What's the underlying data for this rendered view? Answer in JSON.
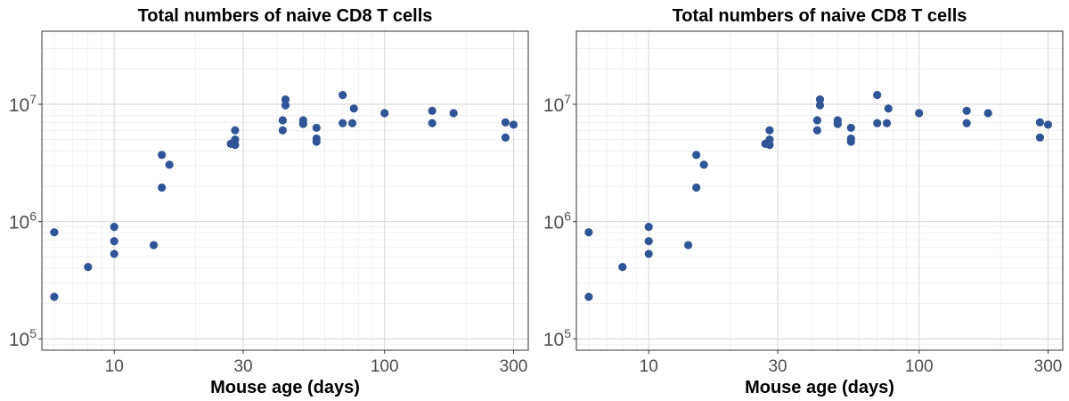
{
  "chart_data": [
    {
      "type": "scatter",
      "title": "Total numbers of naive CD8 T cells",
      "xlabel": "Mouse age (days)",
      "ylabel": "",
      "xscale": "log",
      "yscale": "log",
      "xlim": [
        5.4,
        340
      ],
      "ylim": [
        80000,
        42000000
      ],
      "xticks": [
        {
          "value": 10,
          "label": "10"
        },
        {
          "value": 30,
          "label": "30"
        },
        {
          "value": 100,
          "label": "100"
        },
        {
          "value": 300,
          "label": "300"
        }
      ],
      "yticks": [
        {
          "value": 100000,
          "base": "10",
          "exp": "5"
        },
        {
          "value": 1000000,
          "base": "10",
          "exp": "6"
        },
        {
          "value": 10000000,
          "base": "10",
          "exp": "7"
        }
      ],
      "point_color": "#2f5597",
      "grid": true,
      "points": [
        {
          "x": 6,
          "y": 810000
        },
        {
          "x": 6,
          "y": 228000
        },
        {
          "x": 8,
          "y": 410000
        },
        {
          "x": 10,
          "y": 900000
        },
        {
          "x": 10,
          "y": 680000
        },
        {
          "x": 10,
          "y": 530000
        },
        {
          "x": 14,
          "y": 630000
        },
        {
          "x": 15,
          "y": 3700000
        },
        {
          "x": 15,
          "y": 1950000
        },
        {
          "x": 16,
          "y": 3050000
        },
        {
          "x": 27,
          "y": 4600000
        },
        {
          "x": 28,
          "y": 6000000
        },
        {
          "x": 28,
          "y": 5000000
        },
        {
          "x": 28,
          "y": 4500000
        },
        {
          "x": 42,
          "y": 7300000
        },
        {
          "x": 42,
          "y": 6000000
        },
        {
          "x": 43,
          "y": 11000000
        },
        {
          "x": 43,
          "y": 9800000
        },
        {
          "x": 50,
          "y": 7300000
        },
        {
          "x": 50,
          "y": 6800000
        },
        {
          "x": 56,
          "y": 6300000
        },
        {
          "x": 56,
          "y": 5100000
        },
        {
          "x": 56,
          "y": 4800000
        },
        {
          "x": 70,
          "y": 12000000
        },
        {
          "x": 70,
          "y": 6900000
        },
        {
          "x": 76,
          "y": 6900000
        },
        {
          "x": 77,
          "y": 9200000
        },
        {
          "x": 100,
          "y": 8400000
        },
        {
          "x": 150,
          "y": 8800000
        },
        {
          "x": 150,
          "y": 6900000
        },
        {
          "x": 180,
          "y": 8400000
        },
        {
          "x": 280,
          "y": 7000000
        },
        {
          "x": 280,
          "y": 5200000
        },
        {
          "x": 300,
          "y": 6700000
        }
      ]
    },
    {
      "type": "scatter",
      "title": "Total numbers of naive CD8 T cells",
      "xlabel": "Mouse age (days)",
      "ylabel": "",
      "xscale": "log",
      "yscale": "log",
      "xlim": [
        5.4,
        340
      ],
      "ylim": [
        80000,
        42000000
      ],
      "xticks": [
        {
          "value": 10,
          "label": "10"
        },
        {
          "value": 30,
          "label": "30"
        },
        {
          "value": 100,
          "label": "100"
        },
        {
          "value": 300,
          "label": "300"
        }
      ],
      "yticks": [
        {
          "value": 100000,
          "base": "10",
          "exp": "5"
        },
        {
          "value": 1000000,
          "base": "10",
          "exp": "6"
        },
        {
          "value": 10000000,
          "base": "10",
          "exp": "7"
        }
      ],
      "point_color": "#2f5597",
      "grid": true,
      "points": [
        {
          "x": 6,
          "y": 810000
        },
        {
          "x": 6,
          "y": 228000
        },
        {
          "x": 8,
          "y": 410000
        },
        {
          "x": 10,
          "y": 900000
        },
        {
          "x": 10,
          "y": 680000
        },
        {
          "x": 10,
          "y": 530000
        },
        {
          "x": 14,
          "y": 630000
        },
        {
          "x": 15,
          "y": 3700000
        },
        {
          "x": 15,
          "y": 1950000
        },
        {
          "x": 16,
          "y": 3050000
        },
        {
          "x": 27,
          "y": 4600000
        },
        {
          "x": 28,
          "y": 6000000
        },
        {
          "x": 28,
          "y": 5000000
        },
        {
          "x": 28,
          "y": 4500000
        },
        {
          "x": 42,
          "y": 7300000
        },
        {
          "x": 42,
          "y": 6000000
        },
        {
          "x": 43,
          "y": 11000000
        },
        {
          "x": 43,
          "y": 9800000
        },
        {
          "x": 50,
          "y": 7300000
        },
        {
          "x": 50,
          "y": 6800000
        },
        {
          "x": 56,
          "y": 6300000
        },
        {
          "x": 56,
          "y": 5100000
        },
        {
          "x": 56,
          "y": 4800000
        },
        {
          "x": 70,
          "y": 12000000
        },
        {
          "x": 70,
          "y": 6900000
        },
        {
          "x": 76,
          "y": 6900000
        },
        {
          "x": 77,
          "y": 9200000
        },
        {
          "x": 100,
          "y": 8400000
        },
        {
          "x": 150,
          "y": 8800000
        },
        {
          "x": 150,
          "y": 6900000
        },
        {
          "x": 180,
          "y": 8400000
        },
        {
          "x": 280,
          "y": 7000000
        },
        {
          "x": 280,
          "y": 5200000
        },
        {
          "x": 300,
          "y": 6700000
        }
      ]
    }
  ]
}
